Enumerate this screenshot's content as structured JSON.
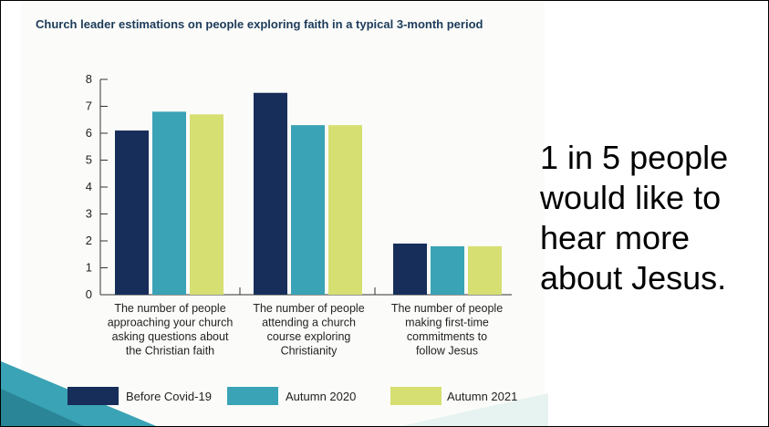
{
  "chart_data": {
    "type": "bar",
    "title": "Church leader estimations on people exploring faith in a typical 3-month period",
    "categories": [
      [
        "The number of people",
        "approaching your church",
        "asking questions about",
        "the Christian faith"
      ],
      [
        "The number of people",
        "attending a church",
        "course exploring",
        "Christianity"
      ],
      [
        "The number of people",
        "making first-time",
        "commitments to",
        "follow Jesus"
      ]
    ],
    "series": [
      {
        "name": "Before Covid-19",
        "color": "#172d5a",
        "values": [
          6.1,
          7.5,
          1.9
        ]
      },
      {
        "name": "Autumn 2020",
        "color": "#3aa3b5",
        "values": [
          6.8,
          6.3,
          1.8
        ]
      },
      {
        "name": "Autumn 2021",
        "color": "#d6df72",
        "values": [
          6.7,
          6.3,
          1.8
        ]
      }
    ],
    "y_ticks": [
      "0",
      "1",
      "2",
      "3",
      "4",
      "5",
      "6",
      "7",
      "8"
    ],
    "ylim": [
      0,
      8
    ],
    "legend_position": "bottom",
    "grid": false,
    "xlabel": "",
    "ylabel": ""
  },
  "side_text": "1 in 5 people would like to hear more about Jesus.",
  "colors": {
    "title": "#1c3b5a",
    "axis": "#333333",
    "deco_teal": "#3aa3b5",
    "deco_light": "#e6f3f0"
  }
}
